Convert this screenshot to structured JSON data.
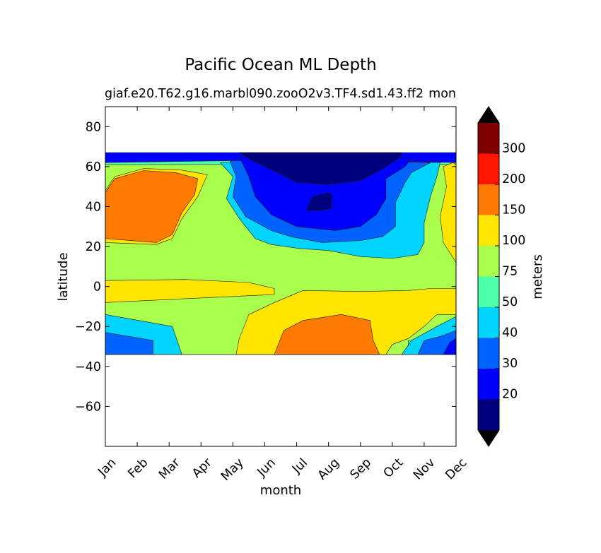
{
  "chart_data": {
    "type": "contour",
    "title": "Pacific Ocean ML Depth",
    "subtitle_left": "giaf.e20.T62.g16.marbl090.zooO2v3.TF4.sd1.43.ff2",
    "subtitle_right": "mon",
    "xlabel": "month",
    "ylabel": "latitude",
    "x_ticks": [
      "Jan",
      "Feb",
      "Mar",
      "Apr",
      "May",
      "Jun",
      "Jul",
      "Aug",
      "Sep",
      "Oct",
      "Nov",
      "Dec"
    ],
    "y_ticks": [
      80,
      60,
      40,
      20,
      0,
      -20,
      -40,
      -60
    ],
    "ylim": [
      -80,
      90
    ],
    "data_lat_range": [
      -34,
      67
    ],
    "colorbar": {
      "label": "meters",
      "levels": [
        10,
        20,
        30,
        40,
        50,
        75,
        100,
        150,
        200,
        300,
        400
      ],
      "tick_labels": [
        "20",
        "30",
        "40",
        "50",
        "75",
        "100",
        "150",
        "200",
        "300"
      ],
      "colors": [
        "#00007f",
        "#0000ff",
        "#0062ff",
        "#00d4ff",
        "#4cffaa",
        "#aaff4c",
        "#ffe500",
        "#ff7a00",
        "#ff1500",
        "#7f0000"
      ],
      "extend_min_color": "#000000",
      "extend_max_color": "#000000"
    },
    "contour_regions": [
      {
        "level": 1,
        "points": [
          [
            0,
            67
          ],
          [
            11,
            67
          ],
          [
            11,
            -34
          ],
          [
            0,
            -34
          ]
        ]
      },
      {
        "level": 4,
        "points": [
          [
            0,
            62
          ],
          [
            4,
            63
          ],
          [
            6,
            61
          ],
          [
            8,
            63
          ],
          [
            11,
            62
          ],
          [
            11,
            -34
          ],
          [
            0,
            -34
          ]
        ]
      },
      {
        "level": 5,
        "points": [
          [
            0,
            61
          ],
          [
            4,
            61
          ],
          [
            5.5,
            58
          ],
          [
            7.5,
            62
          ],
          [
            11,
            61
          ],
          [
            11,
            -27
          ],
          [
            9.5,
            -27
          ],
          [
            9.5,
            -34
          ],
          [
            2.4,
            -34
          ],
          [
            2.1,
            -22
          ],
          [
            0,
            -15
          ]
        ]
      },
      {
        "level": 6,
        "points": [
          [
            0,
            48
          ],
          [
            0.3,
            55
          ],
          [
            1.2,
            59
          ],
          [
            2.3,
            58.5
          ],
          [
            3.2,
            56
          ],
          [
            2.9,
            45
          ],
          [
            2.4,
            34
          ],
          [
            2.1,
            24
          ],
          [
            1.6,
            21
          ],
          [
            0,
            22
          ]
        ]
      },
      {
        "level": 6,
        "points": [
          [
            10.6,
            60
          ],
          [
            10.9,
            62
          ],
          [
            11,
            61
          ],
          [
            11,
            12
          ],
          [
            10.6,
            22
          ],
          [
            10.5,
            35
          ],
          [
            10.7,
            50
          ]
        ]
      },
      {
        "level": 6,
        "points": [
          [
            0,
            3
          ],
          [
            2.5,
            3.5
          ],
          [
            4.5,
            2
          ],
          [
            5.3,
            -1
          ],
          [
            5.3,
            -4
          ],
          [
            0,
            -8
          ]
        ]
      },
      {
        "level": 6,
        "points": [
          [
            4.1,
            -34
          ],
          [
            4.2,
            -26
          ],
          [
            4.5,
            -14
          ],
          [
            5.3,
            -8
          ],
          [
            6.2,
            -2
          ],
          [
            8,
            -2.5
          ],
          [
            9.5,
            -2
          ],
          [
            10.2,
            -1
          ],
          [
            11,
            -1
          ],
          [
            11,
            -14
          ],
          [
            10.4,
            -14
          ],
          [
            10,
            -20
          ],
          [
            9.5,
            -26
          ],
          [
            9,
            -29
          ],
          [
            8.8,
            -34
          ]
        ]
      },
      {
        "level": 6,
        "points": [
          [
            10.5,
            -34
          ],
          [
            10.7,
            -24
          ],
          [
            11,
            -20
          ],
          [
            11,
            -34
          ]
        ]
      },
      {
        "level": 7,
        "points": [
          [
            0,
            47
          ],
          [
            0.3,
            54
          ],
          [
            1.2,
            58
          ],
          [
            2.2,
            57
          ],
          [
            2.9,
            54
          ],
          [
            2.8,
            46
          ],
          [
            2.4,
            37
          ],
          [
            2.1,
            26
          ],
          [
            1.6,
            22
          ],
          [
            0,
            24
          ]
        ]
      },
      {
        "level": 7,
        "points": [
          [
            5.3,
            -34
          ],
          [
            5.6,
            -22
          ],
          [
            6.2,
            -17
          ],
          [
            7.4,
            -14
          ],
          [
            8.3,
            -17
          ],
          [
            8.4,
            -27
          ],
          [
            8.6,
            -34
          ]
        ]
      },
      {
        "level": 3,
        "points": [
          [
            3.6,
            62
          ],
          [
            4,
            55
          ],
          [
            3.8,
            44
          ],
          [
            4.2,
            34
          ],
          [
            4.7,
            24
          ],
          [
            5.2,
            21
          ],
          [
            6.1,
            19
          ],
          [
            7,
            18
          ],
          [
            8,
            15
          ],
          [
            9,
            14
          ],
          [
            9.8,
            16
          ],
          [
            10,
            22
          ],
          [
            10,
            32
          ],
          [
            10.2,
            45
          ],
          [
            10.4,
            55
          ],
          [
            10.5,
            62
          ],
          [
            8,
            63
          ],
          [
            6,
            63
          ]
        ]
      },
      {
        "level": 3,
        "points": [
          [
            0,
            -14
          ],
          [
            2.1,
            -20
          ],
          [
            2.4,
            -34
          ],
          [
            0,
            -34
          ]
        ]
      },
      {
        "level": 3,
        "points": [
          [
            9.3,
            -34
          ],
          [
            9.6,
            -27
          ],
          [
            10.4,
            -20
          ],
          [
            11,
            -15
          ],
          [
            11,
            -34
          ]
        ]
      },
      {
        "level": 2,
        "points": [
          [
            3.9,
            63
          ],
          [
            4.1,
            55
          ],
          [
            4,
            45
          ],
          [
            4.4,
            35
          ],
          [
            5.2,
            28
          ],
          [
            5.8,
            25
          ],
          [
            6.8,
            22
          ],
          [
            8,
            23
          ],
          [
            8.7,
            25
          ],
          [
            9.1,
            30
          ],
          [
            9.1,
            42
          ],
          [
            9.4,
            52
          ],
          [
            9.6,
            57
          ],
          [
            10.2,
            62
          ],
          [
            8,
            63
          ],
          [
            6,
            63
          ]
        ]
      },
      {
        "level": 2,
        "points": [
          [
            0,
            -23
          ],
          [
            1.5,
            -27
          ],
          [
            1.5,
            -34
          ],
          [
            0,
            -34
          ]
        ]
      },
      {
        "level": 2,
        "points": [
          [
            9.8,
            -34
          ],
          [
            10,
            -27
          ],
          [
            10.5,
            -25
          ],
          [
            11,
            -22
          ],
          [
            11,
            -34
          ]
        ]
      },
      {
        "level": 1,
        "points": [
          [
            4.2,
            65
          ],
          [
            4.5,
            55
          ],
          [
            4.7,
            45
          ],
          [
            5.2,
            36
          ],
          [
            6,
            30
          ],
          [
            7.2,
            28
          ],
          [
            8,
            30
          ],
          [
            8.5,
            36
          ],
          [
            8.8,
            44
          ],
          [
            8.8,
            54
          ],
          [
            9.4,
            60
          ],
          [
            9.6,
            64
          ],
          [
            8,
            66
          ],
          [
            6,
            66
          ]
        ]
      },
      {
        "level": 1,
        "points": [
          [
            10.6,
            -34
          ],
          [
            10.8,
            -28
          ],
          [
            11,
            -26
          ],
          [
            11,
            -34
          ]
        ]
      },
      {
        "level": 0,
        "points": [
          [
            4.2,
            67
          ],
          [
            4.6,
            63
          ],
          [
            5.4,
            57
          ],
          [
            6,
            52
          ],
          [
            7,
            51
          ],
          [
            8,
            53
          ],
          [
            8.6,
            58
          ],
          [
            9.2,
            64
          ],
          [
            9.3,
            67
          ]
        ]
      },
      {
        "level": 0,
        "points": [
          [
            6.3,
            38
          ],
          [
            6.5,
            45
          ],
          [
            7,
            47
          ],
          [
            7.1,
            46
          ],
          [
            7.1,
            39
          ],
          [
            6.7,
            38
          ]
        ]
      }
    ]
  }
}
